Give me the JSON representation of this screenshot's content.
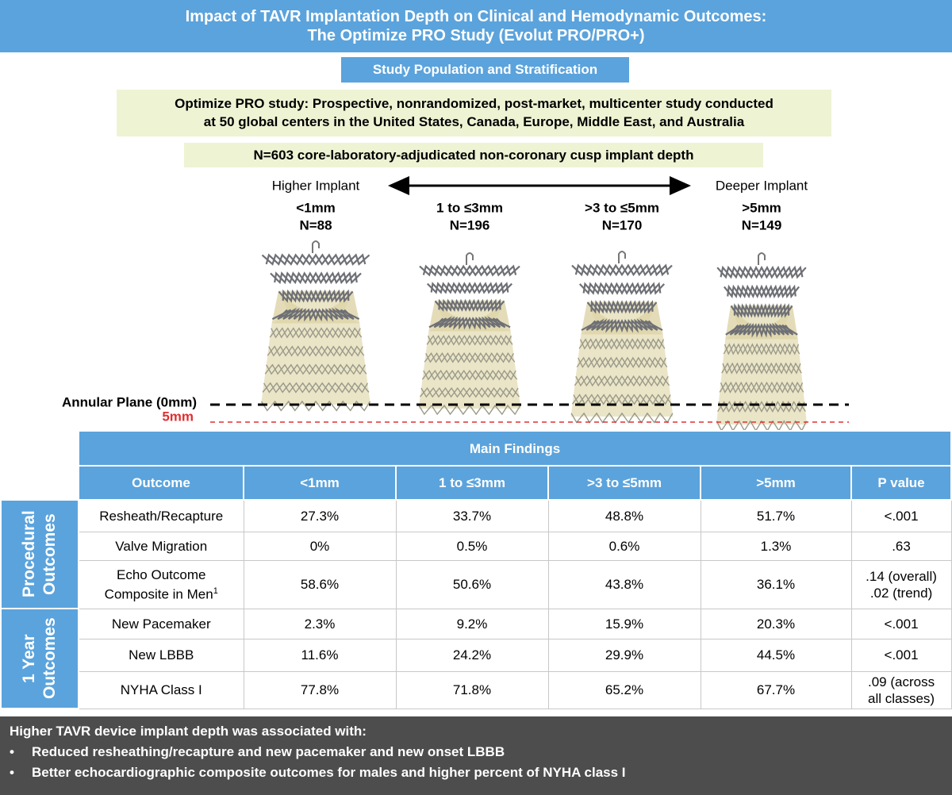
{
  "header": {
    "title": [
      "Impact of TAVR Implantation Depth on Clinical and Hemodynamic Outcomes:",
      "The Optimize PRO Study (Evolut PRO/PRO+)"
    ]
  },
  "section_title": "Study Population and Stratification",
  "study_description": [
    "Optimize PRO study: Prospective, nonrandomized, post-market, multicenter study conducted",
    "at 50 global centers in the United States, Canada, Europe, Middle East, and Australia"
  ],
  "sample": "N=603 core-laboratory-adjudicated non-coronary cusp implant depth",
  "axis": {
    "left": "Higher Implant",
    "right": "Deeper Implant"
  },
  "groups": [
    {
      "depth": "<1mm",
      "n": "N=88"
    },
    {
      "depth": "1 to ≤3mm",
      "n": "N=196"
    },
    {
      "depth": ">3 to ≤5mm",
      "n": "N=170"
    },
    {
      "depth": ">5mm",
      "n": "N=149"
    }
  ],
  "planes": {
    "annular": "Annular Plane (0mm)",
    "five": "5mm"
  },
  "table": {
    "title": "Main Findings",
    "columns": [
      "Outcome",
      "<1mm",
      "1 to ≤3mm",
      ">3 to ≤5mm",
      ">5mm",
      "P value"
    ],
    "groups": [
      {
        "label": "Procedural Outcomes",
        "rows": [
          {
            "outcome": [
              "Resheath/Recapture"
            ],
            "values": [
              "27.3%",
              "33.7%",
              "48.8%",
              "51.7%"
            ],
            "p": [
              "<.001"
            ]
          },
          {
            "outcome": [
              "Valve Migration"
            ],
            "values": [
              "0%",
              "0.5%",
              "0.6%",
              "1.3%"
            ],
            "p": [
              ".63"
            ]
          },
          {
            "outcome": [
              "Echo Outcome",
              "Composite in Men"
            ],
            "footnote": "1",
            "values": [
              "58.6%",
              "50.6%",
              "43.8%",
              "36.1%"
            ],
            "p": [
              ".14 (overall)",
              ".02 (trend)"
            ]
          }
        ]
      },
      {
        "label": "1 Year Outcomes",
        "rows": [
          {
            "outcome": [
              "New Pacemaker"
            ],
            "values": [
              "2.3%",
              "9.2%",
              "15.9%",
              "20.3%"
            ],
            "p": [
              "<.001"
            ]
          },
          {
            "outcome": [
              "New LBBB"
            ],
            "values": [
              "11.6%",
              "24.2%",
              "29.9%",
              "44.5%"
            ],
            "p": [
              "<.001"
            ]
          },
          {
            "outcome": [
              "NYHA Class I"
            ],
            "values": [
              "77.8%",
              "71.8%",
              "65.2%",
              "67.7%"
            ],
            "p": [
              ".09 (across",
              "all classes)"
            ]
          }
        ]
      }
    ]
  },
  "conclusion": {
    "heading": "Higher TAVR device implant depth was associated with:",
    "bullets": [
      "Reduced resheathing/recapture and new pacemaker and new onset LBBB",
      "Better echocardiographic composite outcomes for males and higher percent of NYHA class I"
    ]
  }
}
